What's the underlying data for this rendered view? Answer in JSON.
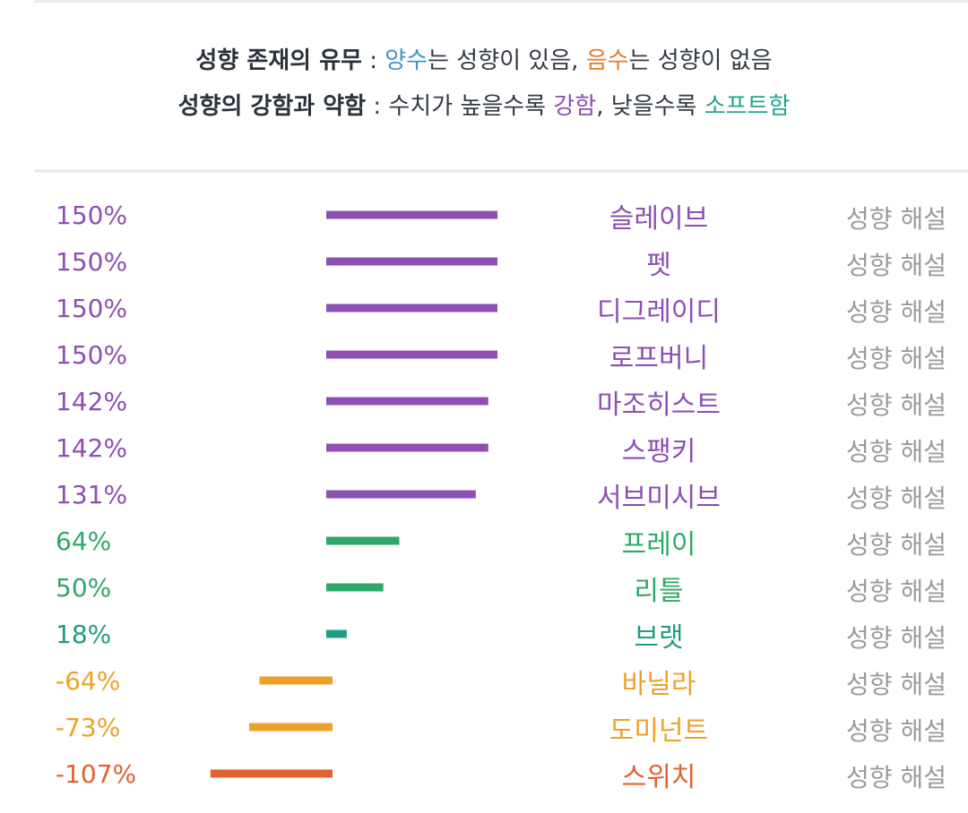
{
  "legend": {
    "line1": {
      "label": "성향 존재의 유무",
      "sep": " : ",
      "positive": "양수",
      "mid": "는 성향이 있음, ",
      "negative": "음수",
      "end": "는 성향이 없음"
    },
    "line2": {
      "label": "성향의 강함과 약함",
      "sep": " : ",
      "pre": "수치가 높을수록 ",
      "strong": "강함",
      "mid": ", 낮을수록 ",
      "soft": "소프트함"
    }
  },
  "colors": {
    "positive_text": "#3d93c7",
    "negative_text": "#e07e29",
    "strong_text": "#8d4fb0",
    "soft_text": "#21a58e",
    "purple": "#8e4fb2",
    "green": "#2ea866",
    "teal": "#1f9c86",
    "orange": "#eda12a",
    "red_orange": "#e2622e",
    "link_gray": "#9b9b9b"
  },
  "chart_data": {
    "type": "bar",
    "orientation": "horizontal",
    "unit": "%",
    "zero_line": false,
    "grid": false,
    "xlim": [
      -107,
      150
    ],
    "categories": [
      "슬레이브",
      "펫",
      "디그레이디",
      "로프버니",
      "마조히스트",
      "스팽키",
      "서브미시브",
      "프레이",
      "리틀",
      "브랫",
      "바닐라",
      "도미넌트",
      "스위치"
    ],
    "values": [
      150,
      150,
      150,
      150,
      142,
      142,
      131,
      64,
      50,
      18,
      -64,
      -73,
      -107
    ],
    "value_labels": [
      "150%",
      "150%",
      "150%",
      "150%",
      "142%",
      "142%",
      "131%",
      "64%",
      "50%",
      "18%",
      "-64%",
      "-73%",
      "-107%"
    ],
    "bar_colors": [
      "#8e4fb2",
      "#8e4fb2",
      "#8e4fb2",
      "#8e4fb2",
      "#8e4fb2",
      "#8e4fb2",
      "#8e4fb2",
      "#2ea866",
      "#2ea866",
      "#1f9c86",
      "#eda12a",
      "#eda12a",
      "#e2622e"
    ],
    "link_label": "성향 해설"
  }
}
